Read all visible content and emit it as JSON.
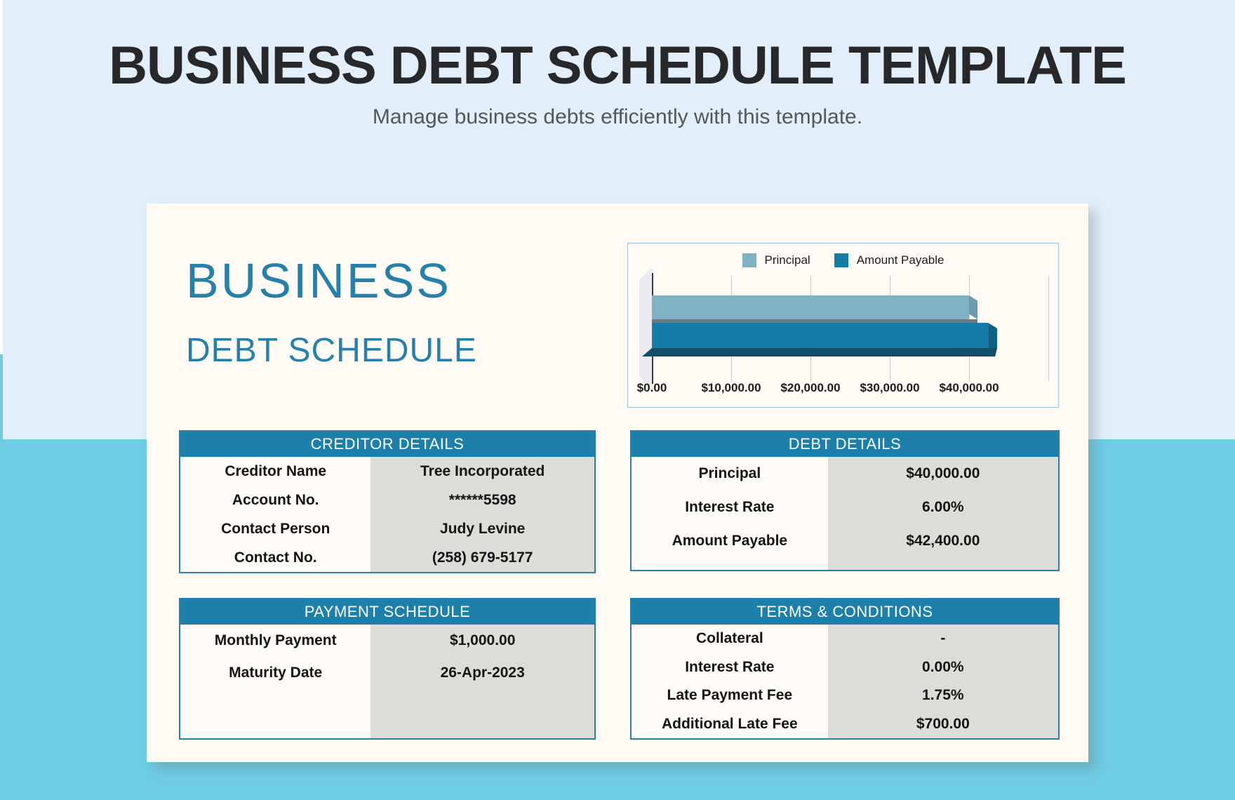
{
  "page": {
    "title": "BUSINESS DEBT SCHEDULE TEMPLATE",
    "subtitle": "Manage business debts efficiently with this template."
  },
  "card": {
    "heading_line1": "BUSINESS",
    "heading_line2": "DEBT SCHEDULE"
  },
  "chart_data": {
    "type": "bar",
    "orientation": "horizontal",
    "title": "",
    "series": [
      {
        "name": "Principal",
        "value": 40000,
        "color": "#7fb2c3"
      },
      {
        "name": "Amount Payable",
        "value": 42400,
        "color": "#147ca6"
      }
    ],
    "x_ticks": [
      "$0.00",
      "$10,000.00",
      "$20,000.00",
      "$30,000.00",
      "$40,000.00"
    ],
    "xlim": [
      0,
      50000
    ],
    "grid": true,
    "legend_position": "top"
  },
  "tables": {
    "creditor_details": {
      "title": "CREDITOR DETAILS",
      "rows": [
        {
          "label": "Creditor Name",
          "value": "Tree Incorporated"
        },
        {
          "label": "Account No.",
          "value": "******5598"
        },
        {
          "label": "Contact Person",
          "value": "Judy Levine"
        },
        {
          "label": "Contact No.",
          "value": "(258) 679-5177"
        }
      ]
    },
    "debt_details": {
      "title": "DEBT DETAILS",
      "rows": [
        {
          "label": "Principal",
          "value": "$40,000.00"
        },
        {
          "label": "Interest Rate",
          "value": "6.00%"
        },
        {
          "label": "Amount Payable",
          "value": "$42,400.00"
        }
      ]
    },
    "payment_schedule": {
      "title": "PAYMENT SCHEDULE",
      "rows": [
        {
          "label": "Monthly Payment",
          "value": "$1,000.00"
        },
        {
          "label": "Maturity Date",
          "value": "26-Apr-2023"
        }
      ]
    },
    "terms_conditions": {
      "title": "TERMS & CONDITIONS",
      "rows": [
        {
          "label": "Collateral",
          "value": "-"
        },
        {
          "label": "Interest Rate",
          "value": "0.00%"
        },
        {
          "label": "Late Payment Fee",
          "value": "1.75%"
        },
        {
          "label": "Additional Late Fee",
          "value": "$700.00"
        }
      ]
    }
  },
  "colors": {
    "accent_teal": "#1c80aa",
    "border_blue": "#2581ac",
    "bar_light": "#7fb2c3",
    "bar_dark": "#147ca6",
    "bg_light_blue": "#e2effa",
    "bg_cyan": "#6ecde4",
    "card_cream": "#fffbf4",
    "cell_gray": "#dcddd9"
  }
}
